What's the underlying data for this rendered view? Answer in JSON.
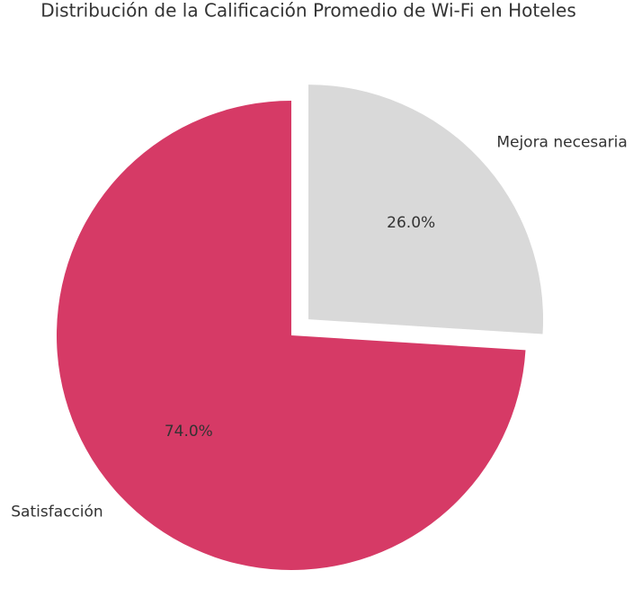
{
  "chart_data": {
    "type": "pie",
    "title": "Distribución de la Calificación Promedio de Wi-Fi en Hoteles",
    "categories": [
      "Satisfacción",
      "Mejora necesaria"
    ],
    "values": [
      74,
      26
    ],
    "value_labels": [
      "74.0%",
      "26.0%"
    ],
    "colors": [
      "#d63a66",
      "#d9d9d9"
    ],
    "explode": [
      0,
      0.1
    ],
    "startangle": 90
  }
}
